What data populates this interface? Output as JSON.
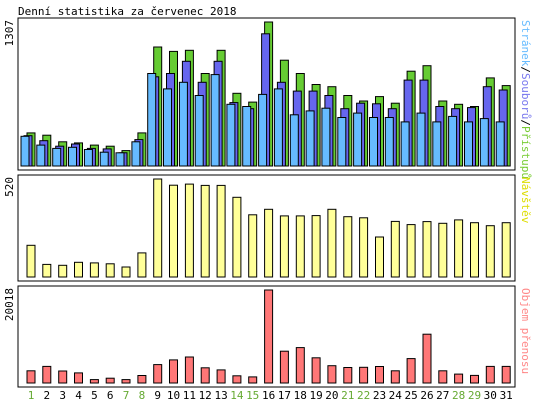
{
  "chart_data": [
    {
      "type": "bar",
      "title": "Denní statistika za červenec 2018",
      "ylabel_value": "1307",
      "side_label": {
        "parts": [
          {
            "text": "Stránek",
            "color": "#66bbff"
          },
          {
            "text": "/",
            "color": "#000000"
          },
          {
            "text": "Souborů",
            "color": "#7777ee"
          },
          {
            "text": "/",
            "color": "#000000"
          },
          {
            "text": "Přístupů",
            "color": "#77cc33"
          }
        ]
      },
      "ylim": [
        0,
        1307
      ],
      "categories": [
        "1",
        "2",
        "3",
        "4",
        "5",
        "6",
        "7",
        "8",
        "9",
        "10",
        "11",
        "12",
        "13",
        "14",
        "15",
        "16",
        "17",
        "18",
        "19",
        "20",
        "21",
        "22",
        "23",
        "24",
        "25",
        "26",
        "27",
        "28",
        "29",
        "30",
        "31"
      ],
      "series": [
        {
          "name": "Přístupů",
          "color": "#66cc33",
          "values": [
            300,
            280,
            220,
            210,
            190,
            180,
            140,
            300,
            1080,
            1040,
            1050,
            840,
            1050,
            660,
            580,
            1307,
            960,
            840,
            740,
            720,
            640,
            590,
            630,
            570,
            860,
            910,
            590,
            560,
            540,
            800,
            730
          ]
        },
        {
          "name": "Souborů",
          "color": "#6666ee",
          "values": [
            275,
            230,
            180,
            200,
            160,
            155,
            120,
            240,
            810,
            840,
            950,
            760,
            950,
            575,
            520,
            1200,
            760,
            680,
            680,
            640,
            520,
            570,
            565,
            520,
            780,
            780,
            540,
            520,
            530,
            720,
            690
          ]
        },
        {
          "name": "Stránek",
          "color": "#66bbff",
          "values": [
            270,
            190,
            160,
            170,
            150,
            125,
            120,
            220,
            840,
            700,
            760,
            640,
            830,
            560,
            540,
            650,
            700,
            465,
            500,
            525,
            440,
            480,
            440,
            440,
            400,
            480,
            400,
            450,
            400,
            430,
            400
          ]
        }
      ]
    },
    {
      "type": "bar",
      "ylabel_value": "520",
      "side_label": {
        "parts": [
          {
            "text": "Návštěv",
            "color": "#dddd00"
          }
        ]
      },
      "ylim": [
        0,
        520
      ],
      "categories": [
        "1",
        "2",
        "3",
        "4",
        "5",
        "6",
        "7",
        "8",
        "9",
        "10",
        "11",
        "12",
        "13",
        "14",
        "15",
        "16",
        "17",
        "18",
        "19",
        "20",
        "21",
        "22",
        "23",
        "24",
        "25",
        "26",
        "27",
        "28",
        "29",
        "30",
        "31"
      ],
      "series": [
        {
          "name": "Návštěv",
          "color": "#ffff99",
          "values": [
            168,
            67,
            62,
            78,
            75,
            70,
            53,
            128,
            520,
            487,
            493,
            486,
            486,
            423,
            330,
            359,
            324,
            324,
            326,
            359,
            320,
            314,
            212,
            295,
            278,
            294,
            285,
            303,
            288,
            272,
            288
          ]
        }
      ]
    },
    {
      "type": "bar",
      "ylabel_value": "20018",
      "side_label": {
        "parts": [
          {
            "text": "Objem přenosu",
            "color": "#ff8888"
          }
        ]
      },
      "ylim": [
        0,
        20018
      ],
      "categories": [
        "1",
        "2",
        "3",
        "4",
        "5",
        "6",
        "7",
        "8",
        "9",
        "10",
        "11",
        "12",
        "13",
        "14",
        "15",
        "16",
        "17",
        "18",
        "19",
        "20",
        "21",
        "22",
        "23",
        "24",
        "25",
        "26",
        "27",
        "28",
        "29",
        "30",
        "31"
      ],
      "series": [
        {
          "name": "Objem přenosu",
          "color": "#ff7777",
          "values": [
            2620,
            3570,
            2580,
            2170,
            740,
            1030,
            740,
            1620,
            3970,
            4970,
            5590,
            3270,
            2810,
            1560,
            1320,
            20018,
            6840,
            7610,
            5420,
            3720,
            3340,
            3370,
            3560,
            2630,
            5250,
            10500,
            2630,
            1920,
            1630,
            3570,
            3570
          ]
        }
      ]
    }
  ],
  "x_axis": {
    "weekend_color": "#66aa33",
    "weekday_color": "#000000",
    "weekend_days": [
      "1",
      "7",
      "8",
      "14",
      "15",
      "21",
      "22",
      "28",
      "29"
    ]
  }
}
